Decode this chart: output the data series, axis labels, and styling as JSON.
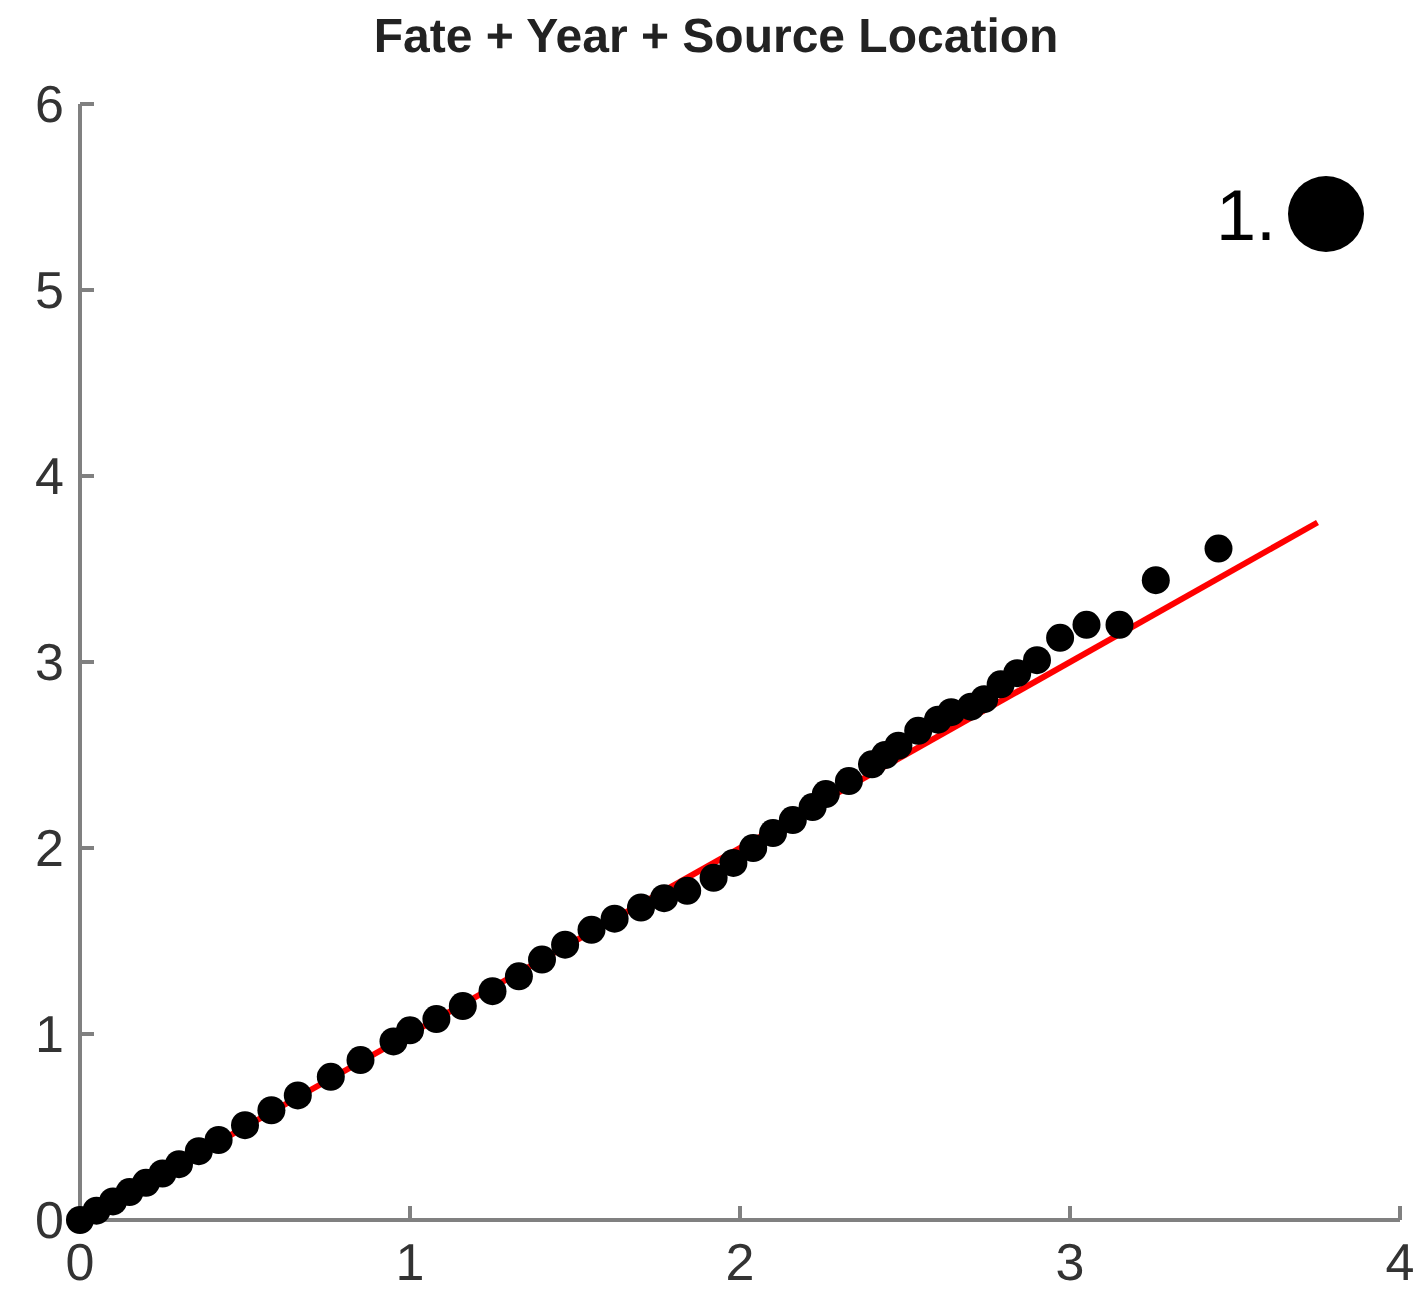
{
  "chart_data": {
    "type": "scatter",
    "title": "Fate + Year + Source Location",
    "xlim": [
      0,
      4
    ],
    "ylim": [
      0,
      6
    ],
    "xticks": [
      0,
      1,
      2,
      3,
      4
    ],
    "yticks": [
      0,
      1,
      2,
      3,
      4,
      5,
      6
    ],
    "grid": false,
    "annotations": [
      "1."
    ],
    "series": [
      {
        "color": "#000000",
        "marker": "circle",
        "x": [
          0,
          0.05,
          0.1,
          0.15,
          0.2,
          0.25,
          0.3,
          0.36,
          0.42,
          0.5,
          0.58,
          0.66,
          0.76,
          0.85,
          0.95,
          1.0,
          1.08,
          1.16,
          1.25,
          1.33,
          1.4,
          1.47,
          1.55,
          1.62,
          1.7,
          1.77,
          1.84,
          1.92,
          1.98,
          2.04,
          2.1,
          2.16,
          2.22,
          2.26,
          2.33,
          2.4,
          2.44,
          2.48,
          2.54,
          2.6,
          2.64,
          2.7,
          2.74,
          2.79,
          2.84,
          2.9,
          2.97,
          3.05,
          3.15,
          3.26,
          3.45
        ],
        "values": [
          0,
          0.05,
          0.1,
          0.15,
          0.2,
          0.25,
          0.3,
          0.37,
          0.43,
          0.51,
          0.59,
          0.67,
          0.77,
          0.86,
          0.96,
          1.02,
          1.08,
          1.15,
          1.23,
          1.31,
          1.4,
          1.48,
          1.56,
          1.62,
          1.68,
          1.73,
          1.77,
          1.84,
          1.92,
          2.0,
          2.08,
          2.15,
          2.22,
          2.29,
          2.36,
          2.45,
          2.5,
          2.55,
          2.63,
          2.69,
          2.73,
          2.76,
          2.8,
          2.88,
          2.94,
          3.01,
          3.13,
          3.2,
          3.2,
          3.44,
          3.61
        ]
      },
      {
        "type": "line",
        "color": "#ff0000",
        "line_style": "solid",
        "marker": "none",
        "x": [
          0,
          3.75
        ],
        "values": [
          0,
          3.75
        ]
      }
    ]
  }
}
